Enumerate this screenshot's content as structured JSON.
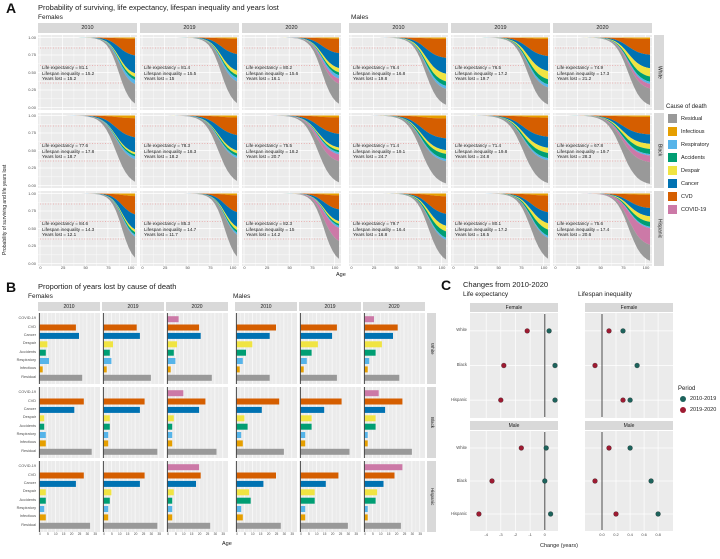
{
  "chart_data": [
    {
      "id": "A",
      "panel_label": "A",
      "type": "area",
      "title": "Probability of surviving, life expectancy, lifespan inequality and years lost",
      "xlabel": "Age",
      "ylabel": "Probability of surviving and life years lost",
      "sexes": [
        "Females",
        "Males"
      ],
      "years": [
        "2010",
        "2019",
        "2020"
      ],
      "races": [
        "White",
        "Black",
        "Hispanic"
      ],
      "x_tick_labels": [
        "0",
        "25",
        "50",
        "75",
        "100"
      ],
      "y_tick_labels": [
        "1.00",
        "0.75",
        "0.50",
        "0.25",
        "0.00"
      ],
      "legend_title": "Cause of death",
      "causes": [
        {
          "label": "Residual",
          "color": "#999999"
        },
        {
          "label": "Infectious",
          "color": "#E69F00"
        },
        {
          "label": "Respiratory",
          "color": "#56B4E9"
        },
        {
          "label": "Accidents",
          "color": "#009E73"
        },
        {
          "label": "Despair",
          "color": "#F0E442"
        },
        {
          "label": "Cancer",
          "color": "#0072B2"
        },
        {
          "label": "CVD",
          "color": "#D55E00"
        },
        {
          "label": "COVID-19",
          "color": "#CC79A7"
        }
      ],
      "annotation_prefixes": {
        "le": "Life expectancy = ",
        "li": "Lifespan inequality = ",
        "yl": "Years lost = "
      },
      "cells": [
        {
          "sex": "Females",
          "race": "White",
          "year": "2010",
          "life_expectancy": 81.1,
          "lifespan_inequality": 15.2,
          "years_lost": 15.2
        },
        {
          "sex": "Females",
          "race": "White",
          "year": "2019",
          "life_expectancy": 81.4,
          "lifespan_inequality": 15.5,
          "years_lost": 15
        },
        {
          "sex": "Females",
          "race": "White",
          "year": "2020",
          "life_expectancy": 80.2,
          "lifespan_inequality": 15.6,
          "years_lost": 16.1
        },
        {
          "sex": "Females",
          "race": "Black",
          "year": "2010",
          "life_expectancy": 77.6,
          "lifespan_inequality": 17.8,
          "years_lost": 18.7
        },
        {
          "sex": "Females",
          "race": "Black",
          "year": "2019",
          "life_expectancy": 78.3,
          "lifespan_inequality": 18.3,
          "years_lost": 18.2
        },
        {
          "sex": "Females",
          "race": "Black",
          "year": "2020",
          "life_expectancy": 75.5,
          "lifespan_inequality": 18.2,
          "years_lost": 20.7
        },
        {
          "sex": "Females",
          "race": "Hispanic",
          "year": "2010",
          "life_expectancy": 84.6,
          "lifespan_inequality": 14.3,
          "years_lost": 12.1
        },
        {
          "sex": "Females",
          "race": "Hispanic",
          "year": "2019",
          "life_expectancy": 85.3,
          "lifespan_inequality": 14.7,
          "years_lost": 11.7
        },
        {
          "sex": "Females",
          "race": "Hispanic",
          "year": "2020",
          "life_expectancy": 82.3,
          "lifespan_inequality": 15,
          "years_lost": 14.2
        },
        {
          "sex": "Males",
          "race": "White",
          "year": "2010",
          "life_expectancy": 76.4,
          "lifespan_inequality": 16.8,
          "years_lost": 19.8
        },
        {
          "sex": "Males",
          "race": "White",
          "year": "2019",
          "life_expectancy": 76.5,
          "lifespan_inequality": 17.2,
          "years_lost": 19.7
        },
        {
          "sex": "Males",
          "race": "White",
          "year": "2020",
          "life_expectancy": 74.9,
          "lifespan_inequality": 17.3,
          "years_lost": 21.2
        },
        {
          "sex": "Males",
          "race": "Black",
          "year": "2010",
          "life_expectancy": 71.4,
          "lifespan_inequality": 19.1,
          "years_lost": 24.7
        },
        {
          "sex": "Males",
          "race": "Black",
          "year": "2019",
          "life_expectancy": 71.4,
          "lifespan_inequality": 19.8,
          "years_lost": 24.8
        },
        {
          "sex": "Males",
          "race": "Black",
          "year": "2020",
          "life_expectancy": 67.8,
          "lifespan_inequality": 19.7,
          "years_lost": 28.3
        },
        {
          "sex": "Males",
          "race": "Hispanic",
          "year": "2010",
          "life_expectancy": 79.7,
          "lifespan_inequality": 16.4,
          "years_lost": 16.8
        },
        {
          "sex": "Males",
          "race": "Hispanic",
          "year": "2019",
          "life_expectancy": 80.1,
          "lifespan_inequality": 17.2,
          "years_lost": 16.5
        },
        {
          "sex": "Males",
          "race": "Hispanic",
          "year": "2020",
          "life_expectancy": 75.6,
          "lifespan_inequality": 17.4,
          "years_lost": 20.6
        }
      ]
    },
    {
      "id": "B",
      "panel_label": "B",
      "type": "bar",
      "title": "Proportion of years lost by cause of death",
      "xlabel": "Age",
      "sexes": [
        "Females",
        "Males"
      ],
      "years": [
        "2010",
        "2019",
        "2020"
      ],
      "races": [
        "White",
        "Black",
        "Hispanic"
      ],
      "categories": [
        "COVID-19",
        "CVD",
        "Cancer",
        "Despair",
        "Accidents",
        "Respiratory",
        "Infectious",
        "Residual"
      ],
      "x_tick_labels": [
        "0",
        "5",
        "10",
        "15",
        "20",
        "25",
        "30",
        "35"
      ],
      "xlim": [
        0,
        37
      ],
      "cells": [
        {
          "sex": "Females",
          "race": "White",
          "year": "2010",
          "values": [
            0,
            23,
            25,
            5,
            4,
            6,
            2,
            27
          ]
        },
        {
          "sex": "Females",
          "race": "White",
          "year": "2019",
          "values": [
            0,
            21,
            23,
            6,
            4,
            5,
            2,
            30
          ]
        },
        {
          "sex": "Females",
          "race": "White",
          "year": "2020",
          "values": [
            7,
            20,
            21,
            6,
            4,
            5,
            2,
            28
          ]
        },
        {
          "sex": "Females",
          "race": "Black",
          "year": "2010",
          "values": [
            0,
            28,
            22,
            3,
            3,
            4,
            4,
            33
          ]
        },
        {
          "sex": "Females",
          "race": "Black",
          "year": "2019",
          "values": [
            0,
            26,
            23,
            4,
            4,
            3,
            3,
            34
          ]
        },
        {
          "sex": "Females",
          "race": "Black",
          "year": "2020",
          "values": [
            10,
            24,
            20,
            4,
            3,
            3,
            3,
            31
          ]
        },
        {
          "sex": "Females",
          "race": "Hispanic",
          "year": "2010",
          "values": [
            0,
            28,
            23,
            4,
            4,
            3,
            4,
            32
          ]
        },
        {
          "sex": "Females",
          "race": "Hispanic",
          "year": "2019",
          "values": [
            0,
            26,
            23,
            5,
            4,
            3,
            3,
            34
          ]
        },
        {
          "sex": "Females",
          "race": "Hispanic",
          "year": "2020",
          "values": [
            20,
            21,
            18,
            4,
            3,
            3,
            3,
            27
          ]
        },
        {
          "sex": "Males",
          "race": "White",
          "year": "2010",
          "values": [
            0,
            25,
            21,
            10,
            6,
            4,
            2,
            21
          ]
        },
        {
          "sex": "Males",
          "race": "White",
          "year": "2019",
          "values": [
            0,
            23,
            20,
            11,
            7,
            4,
            2,
            23
          ]
        },
        {
          "sex": "Males",
          "race": "White",
          "year": "2020",
          "values": [
            6,
            21,
            18,
            11,
            7,
            3,
            2,
            22
          ]
        },
        {
          "sex": "Males",
          "race": "Black",
          "year": "2010",
          "values": [
            0,
            27,
            16,
            5,
            7,
            3,
            4,
            30
          ]
        },
        {
          "sex": "Males",
          "race": "Black",
          "year": "2019",
          "values": [
            0,
            26,
            15,
            7,
            7,
            3,
            3,
            31
          ]
        },
        {
          "sex": "Males",
          "race": "Black",
          "year": "2020",
          "values": [
            9,
            24,
            13,
            7,
            7,
            2,
            2,
            30
          ]
        },
        {
          "sex": "Males",
          "race": "Hispanic",
          "year": "2010",
          "values": [
            0,
            25,
            17,
            8,
            9,
            3,
            4,
            28
          ]
        },
        {
          "sex": "Males",
          "race": "Hispanic",
          "year": "2019",
          "values": [
            0,
            24,
            16,
            9,
            9,
            3,
            3,
            30
          ]
        },
        {
          "sex": "Males",
          "race": "Hispanic",
          "year": "2020",
          "values": [
            24,
            19,
            12,
            8,
            7,
            2,
            2,
            23
          ]
        }
      ]
    },
    {
      "id": "C",
      "panel_label": "C",
      "type": "scatter",
      "title": "Changes from 2010-2020",
      "xlabel": "Change (years)",
      "races": [
        "White",
        "Black",
        "Hispanic"
      ],
      "legend": {
        "title": "Period",
        "items": [
          {
            "label": "2010-2019",
            "color": "#1d635c"
          },
          {
            "label": "2019-2020",
            "color": "#9e1b32"
          }
        ]
      },
      "subcharts": [
        {
          "title": "Life expectancy",
          "xlim": [
            -4.9,
            0.7
          ],
          "ticks": [
            -4,
            -3,
            -2,
            -1,
            0
          ],
          "tick_labels": [
            "-4",
            "-3",
            "-2",
            "-1",
            "0"
          ],
          "vline": 0,
          "facets": [
            {
              "label": "Female",
              "points": [
                {
                  "race": "White",
                  "v2010_2019": 0.3,
                  "v2019_2020": -1.2
                },
                {
                  "race": "Black",
                  "v2010_2019": 0.7,
                  "v2019_2020": -2.8
                },
                {
                  "race": "Hispanic",
                  "v2010_2019": 0.7,
                  "v2019_2020": -3.0
                }
              ]
            },
            {
              "label": "Male",
              "points": [
                {
                  "race": "White",
                  "v2010_2019": 0.1,
                  "v2019_2020": -1.6
                },
                {
                  "race": "Black",
                  "v2010_2019": 0.0,
                  "v2019_2020": -3.6
                },
                {
                  "race": "Hispanic",
                  "v2010_2019": 0.4,
                  "v2019_2020": -4.5
                }
              ]
            }
          ]
        },
        {
          "title": "Lifespan inequality",
          "xlim": [
            -0.2,
            0.97
          ],
          "ticks": [
            0,
            0.2,
            0.4,
            0.6,
            0.8
          ],
          "tick_labels": [
            "0.0",
            "0.2",
            "0.4",
            "0.6",
            "0.8"
          ],
          "vline": 0,
          "facets": [
            {
              "label": "Female",
              "points": [
                {
                  "race": "White",
                  "v2010_2019": 0.3,
                  "v2019_2020": 0.1
                },
                {
                  "race": "Black",
                  "v2010_2019": 0.5,
                  "v2019_2020": -0.1
                },
                {
                  "race": "Hispanic",
                  "v2010_2019": 0.4,
                  "v2019_2020": 0.3
                }
              ]
            },
            {
              "label": "Male",
              "points": [
                {
                  "race": "White",
                  "v2010_2019": 0.4,
                  "v2019_2020": 0.1
                },
                {
                  "race": "Black",
                  "v2010_2019": 0.7,
                  "v2019_2020": -0.1
                },
                {
                  "race": "Hispanic",
                  "v2010_2019": 0.8,
                  "v2019_2020": 0.2
                }
              ]
            }
          ]
        }
      ]
    }
  ]
}
